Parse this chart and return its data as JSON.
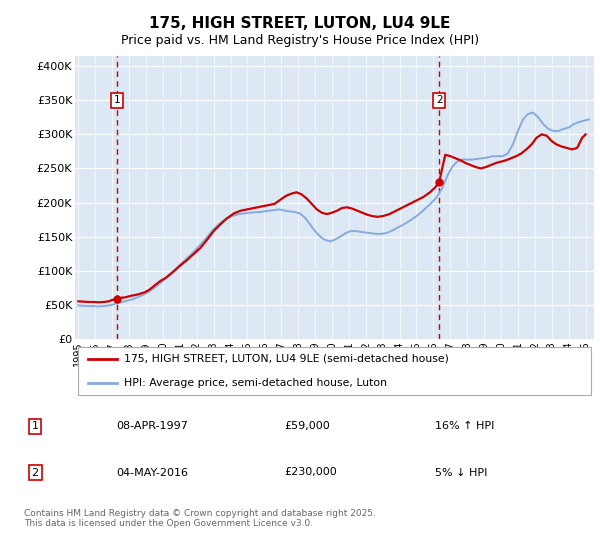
{
  "title": "175, HIGH STREET, LUTON, LU4 9LE",
  "subtitle": "Price paid vs. HM Land Registry's House Price Index (HPI)",
  "ylabel_ticks": [
    "£0",
    "£50K",
    "£100K",
    "£150K",
    "£200K",
    "£250K",
    "£300K",
    "£350K",
    "£400K"
  ],
  "ytick_values": [
    0,
    50000,
    100000,
    150000,
    200000,
    250000,
    300000,
    350000,
    400000
  ],
  "ylim": [
    0,
    415000
  ],
  "xlim_start": 1994.8,
  "xlim_end": 2025.5,
  "background_color": "#dde8f5",
  "grid_color": "#ffffff",
  "red_line_color": "#cc0000",
  "blue_line_color": "#88aadd",
  "dashed_red_color": "#cc0000",
  "marker1_date": 1997.27,
  "marker1_value": 59000,
  "marker2_date": 2016.34,
  "marker2_value": 230000,
  "legend_label1": "175, HIGH STREET, LUTON, LU4 9LE (semi-detached house)",
  "legend_label2": "HPI: Average price, semi-detached house, Luton",
  "table_row1": [
    "1",
    "08-APR-1997",
    "£59,000",
    "16% ↑ HPI"
  ],
  "table_row2": [
    "2",
    "04-MAY-2016",
    "£230,000",
    "5% ↓ HPI"
  ],
  "footer": "Contains HM Land Registry data © Crown copyright and database right 2025.\nThis data is licensed under the Open Government Licence v3.0.",
  "red_data": {
    "years": [
      1995.0,
      1995.3,
      1995.6,
      1995.9,
      1996.2,
      1996.5,
      1996.8,
      1997.0,
      1997.27,
      1997.5,
      1997.8,
      1998.1,
      1998.5,
      1998.9,
      1999.2,
      1999.5,
      1999.8,
      2000.2,
      2000.6,
      2001.0,
      2001.4,
      2001.8,
      2002.2,
      2002.6,
      2003.0,
      2003.4,
      2003.8,
      2004.2,
      2004.6,
      2005.0,
      2005.4,
      2005.8,
      2006.2,
      2006.6,
      2007.0,
      2007.3,
      2007.6,
      2007.9,
      2008.2,
      2008.5,
      2008.8,
      2009.1,
      2009.4,
      2009.7,
      2010.0,
      2010.3,
      2010.6,
      2010.9,
      2011.2,
      2011.5,
      2011.8,
      2012.1,
      2012.4,
      2012.7,
      2013.0,
      2013.4,
      2013.8,
      2014.2,
      2014.6,
      2015.0,
      2015.4,
      2015.8,
      2016.1,
      2016.34,
      2016.7,
      2017.0,
      2017.3,
      2017.6,
      2017.9,
      2018.2,
      2018.5,
      2018.8,
      2019.1,
      2019.4,
      2019.7,
      2020.0,
      2020.3,
      2020.6,
      2020.9,
      2021.2,
      2021.5,
      2021.8,
      2022.1,
      2022.4,
      2022.7,
      2023.0,
      2023.3,
      2023.6,
      2023.9,
      2024.2,
      2024.5,
      2024.8,
      2025.0
    ],
    "values": [
      55000,
      54500,
      54000,
      54000,
      53500,
      54000,
      55000,
      57000,
      59000,
      60000,
      61000,
      63000,
      65000,
      68000,
      72000,
      78000,
      84000,
      90000,
      98000,
      107000,
      115000,
      124000,
      133000,
      145000,
      158000,
      168000,
      177000,
      184000,
      188000,
      190000,
      192000,
      194000,
      196000,
      198000,
      205000,
      210000,
      213000,
      215000,
      212000,
      206000,
      198000,
      190000,
      185000,
      183000,
      185000,
      188000,
      192000,
      193000,
      191000,
      188000,
      185000,
      182000,
      180000,
      179000,
      180000,
      183000,
      188000,
      193000,
      198000,
      203000,
      208000,
      215000,
      222000,
      230000,
      270000,
      268000,
      265000,
      262000,
      258000,
      255000,
      252000,
      250000,
      252000,
      255000,
      258000,
      260000,
      262000,
      265000,
      268000,
      272000,
      278000,
      285000,
      295000,
      300000,
      298000,
      290000,
      285000,
      282000,
      280000,
      278000,
      280000,
      295000,
      300000
    ]
  },
  "blue_data": {
    "years": [
      1995.0,
      1995.3,
      1995.6,
      1995.9,
      1996.2,
      1996.5,
      1996.8,
      1997.0,
      1997.3,
      1997.6,
      1997.9,
      1998.2,
      1998.5,
      1998.8,
      1999.1,
      1999.4,
      1999.7,
      2000.0,
      2000.3,
      2000.6,
      2000.9,
      2001.2,
      2001.5,
      2001.8,
      2002.1,
      2002.4,
      2002.7,
      2003.0,
      2003.3,
      2003.6,
      2003.9,
      2004.2,
      2004.5,
      2004.8,
      2005.1,
      2005.4,
      2005.7,
      2006.0,
      2006.3,
      2006.6,
      2006.9,
      2007.2,
      2007.5,
      2007.8,
      2008.1,
      2008.4,
      2008.7,
      2009.0,
      2009.3,
      2009.6,
      2009.9,
      2010.2,
      2010.5,
      2010.8,
      2011.1,
      2011.4,
      2011.7,
      2012.0,
      2012.3,
      2012.6,
      2012.9,
      2013.2,
      2013.5,
      2013.8,
      2014.1,
      2014.4,
      2014.7,
      2015.0,
      2015.3,
      2015.6,
      2015.9,
      2016.2,
      2016.5,
      2016.8,
      2017.1,
      2017.4,
      2017.7,
      2018.0,
      2018.3,
      2018.6,
      2018.9,
      2019.2,
      2019.5,
      2019.8,
      2020.1,
      2020.4,
      2020.7,
      2021.0,
      2021.3,
      2021.6,
      2021.9,
      2022.2,
      2022.5,
      2022.8,
      2023.1,
      2023.4,
      2023.7,
      2024.0,
      2024.3,
      2024.6,
      2024.9,
      2025.2
    ],
    "values": [
      49000,
      48500,
      48000,
      48000,
      47500,
      48000,
      49000,
      50000,
      52000,
      54000,
      56000,
      58000,
      61000,
      64000,
      68000,
      73000,
      79000,
      85000,
      92000,
      99000,
      106000,
      113000,
      120000,
      127000,
      135000,
      143000,
      152000,
      161000,
      168000,
      174000,
      178000,
      181000,
      183000,
      184000,
      185000,
      185500,
      186000,
      187000,
      188000,
      189000,
      190000,
      188000,
      187000,
      186000,
      184000,
      178000,
      168000,
      158000,
      150000,
      145000,
      143000,
      146000,
      150000,
      155000,
      158000,
      158000,
      157000,
      156000,
      155000,
      154000,
      154000,
      155000,
      158000,
      162000,
      166000,
      170000,
      175000,
      180000,
      186000,
      193000,
      200000,
      208000,
      220000,
      238000,
      252000,
      260000,
      263000,
      263000,
      263000,
      264000,
      265000,
      266000,
      268000,
      268000,
      268000,
      272000,
      285000,
      305000,
      322000,
      330000,
      332000,
      325000,
      315000,
      308000,
      305000,
      305000,
      308000,
      310000,
      315000,
      318000,
      320000,
      322000
    ]
  }
}
